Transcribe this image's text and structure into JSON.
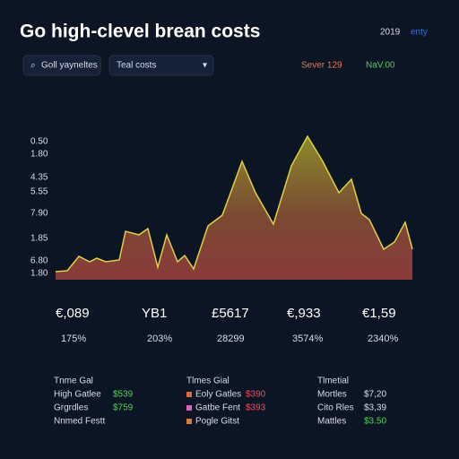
{
  "header": {
    "title": "Go high-clevel brean costs",
    "year": "2019",
    "link": "enty"
  },
  "toolbar": {
    "search": "Goll yayneltes",
    "dropdown": "Teal costs",
    "status_a": "Sever 129",
    "status_b": "NaV.00"
  },
  "axis": {
    "labels": [
      "0.50",
      "1.80",
      "4.35",
      "5.55",
      "7.90",
      "1.85",
      "6.80",
      "1.80"
    ]
  },
  "stats": [
    {
      "value": "€,089",
      "change": "175%"
    },
    {
      "value": "YB1",
      "change": "203%"
    },
    {
      "value": "£5617",
      "change": "28299"
    },
    {
      "value": "€,933",
      "change": "3574%"
    },
    {
      "value": "€1,59",
      "change": "2340%"
    }
  ],
  "panels": [
    {
      "title": "Tnme Gal",
      "rows": [
        {
          "label": "High Gatlee",
          "value": "$539"
        },
        {
          "label": "Grgrdles",
          "value": "$759"
        },
        {
          "label": "Nnmed Festt"
        }
      ]
    },
    {
      "title": "Tlmes Gial",
      "rows": [
        {
          "label": "Eoly Gatles",
          "value": "$390"
        },
        {
          "label": "Gatbe Fent",
          "value": "$393"
        },
        {
          "label": "Pogle Gitst"
        }
      ]
    },
    {
      "title": "Tlmetial",
      "rows": [
        {
          "label": "Mortles",
          "value": "$7,20"
        },
        {
          "label": "Cito Rles",
          "value": "$3,39"
        },
        {
          "label": "Mattles",
          "value": "$3.50"
        }
      ]
    }
  ]
}
